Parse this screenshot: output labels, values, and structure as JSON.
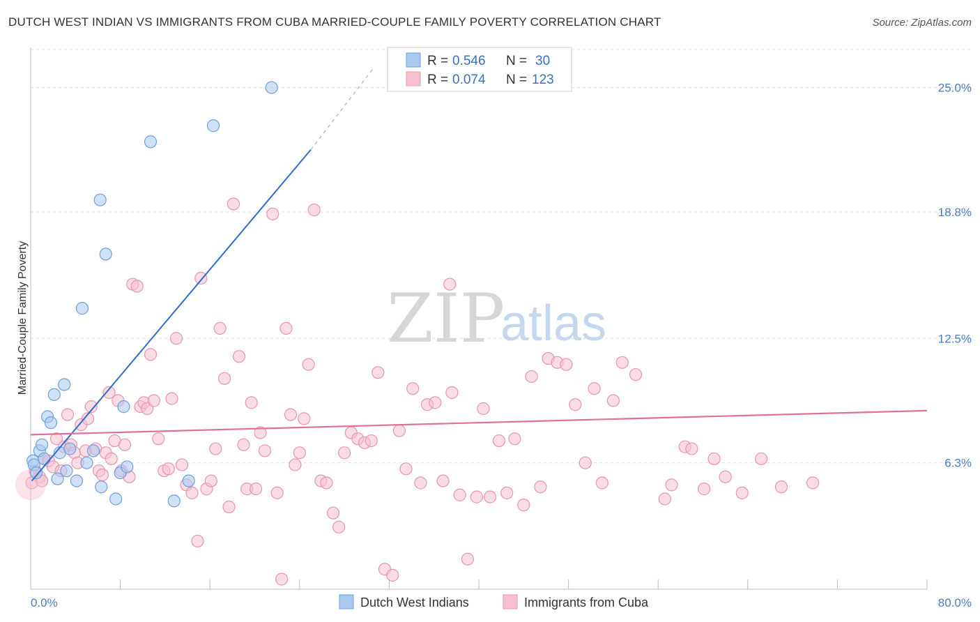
{
  "header": {
    "title": "DUTCH WEST INDIAN VS IMMIGRANTS FROM CUBA MARRIED-COUPLE FAMILY POVERTY CORRELATION CHART",
    "source": "Source: ZipAtlas.com"
  },
  "watermark": {
    "zip": "ZIP",
    "atlas": "atlas"
  },
  "legend": {
    "series1": {
      "r_label": "R = ",
      "r_value": "0.546",
      "n_label": "N = ",
      "n_value": "30"
    },
    "series2": {
      "r_label": "R = ",
      "r_value": "0.074",
      "n_label": "N = ",
      "n_value": "123"
    }
  },
  "chart_data": {
    "type": "scatter",
    "title": "DUTCH WEST INDIAN VS IMMIGRANTS FROM CUBA MARRIED-COUPLE FAMILY POVERTY CORRELATION CHART",
    "xlabel": "",
    "ylabel": "Married-Couple Family Poverty",
    "xlim": [
      0,
      80
    ],
    "ylim": [
      0,
      27
    ],
    "x_tick_labels": [
      {
        "value": 0,
        "label": "0.0%"
      },
      {
        "value": 80,
        "label": "80.0%"
      }
    ],
    "y_tick_labels": [
      {
        "value": 6.3,
        "label": "6.3%"
      },
      {
        "value": 12.5,
        "label": "12.5%"
      },
      {
        "value": 18.8,
        "label": "18.8%"
      },
      {
        "value": 25.0,
        "label": "25.0%"
      }
    ],
    "colors": {
      "blue_fill": "#a9c8f0",
      "blue_stroke": "#6f9fdd",
      "blue_line": "#2a6fcc",
      "pink_fill": "#f6c0d0",
      "pink_stroke": "#e994b0",
      "pink_line": "#e0709a",
      "grid": "#dddddd",
      "axis": "#bbbbbb"
    },
    "series": [
      {
        "name": "Dutch West Indians",
        "color": "#a9c8f0",
        "trend": {
          "x": [
            0.1,
            25.0
          ],
          "y": [
            5.4,
            21.9
          ],
          "dash_to": [
            30.5,
            25.9
          ]
        },
        "points": [
          [
            0.2,
            6.4
          ],
          [
            0.3,
            6.2
          ],
          [
            0.5,
            5.8
          ],
          [
            0.8,
            6.9
          ],
          [
            1.0,
            7.2
          ],
          [
            1.5,
            8.6
          ],
          [
            1.8,
            8.3
          ],
          [
            2.1,
            9.7
          ],
          [
            2.4,
            5.5
          ],
          [
            2.6,
            6.8
          ],
          [
            3.0,
            10.2
          ],
          [
            3.2,
            5.9
          ],
          [
            3.5,
            7.0
          ],
          [
            4.1,
            5.4
          ],
          [
            4.6,
            14.0
          ],
          [
            5.0,
            6.3
          ],
          [
            5.6,
            6.9
          ],
          [
            6.2,
            19.4
          ],
          [
            6.3,
            5.1
          ],
          [
            6.7,
            16.7
          ],
          [
            7.6,
            4.5
          ],
          [
            8.0,
            5.8
          ],
          [
            8.3,
            9.1
          ],
          [
            8.6,
            6.1
          ],
          [
            10.7,
            22.3
          ],
          [
            12.8,
            4.4
          ],
          [
            14.1,
            5.4
          ],
          [
            16.3,
            23.1
          ],
          [
            21.5,
            25.0
          ],
          [
            1.2,
            6.5
          ]
        ]
      },
      {
        "name": "Immigrants from Cuba",
        "color": "#f6c0d0",
        "trend": {
          "x": [
            0,
            80
          ],
          "y": [
            7.7,
            8.9
          ]
        },
        "points": [
          [
            0.1,
            5.3
          ],
          [
            0.4,
            5.9
          ],
          [
            0.8,
            5.6
          ],
          [
            1.0,
            5.4
          ],
          [
            1.2,
            6.5
          ],
          [
            1.6,
            6.4
          ],
          [
            2.0,
            6.1
          ],
          [
            2.3,
            7.5
          ],
          [
            2.7,
            5.9
          ],
          [
            3.0,
            7.1
          ],
          [
            3.3,
            8.7
          ],
          [
            3.6,
            7.2
          ],
          [
            3.9,
            6.8
          ],
          [
            4.2,
            6.3
          ],
          [
            4.5,
            8.2
          ],
          [
            4.9,
            6.9
          ],
          [
            5.1,
            8.5
          ],
          [
            5.4,
            9.1
          ],
          [
            5.8,
            7.0
          ],
          [
            6.1,
            5.9
          ],
          [
            6.4,
            5.7
          ],
          [
            6.7,
            6.8
          ],
          [
            7.0,
            9.8
          ],
          [
            7.2,
            6.5
          ],
          [
            7.5,
            7.4
          ],
          [
            7.8,
            9.4
          ],
          [
            8.1,
            5.9
          ],
          [
            8.4,
            7.2
          ],
          [
            8.8,
            5.6
          ],
          [
            9.1,
            15.2
          ],
          [
            9.5,
            15.1
          ],
          [
            9.8,
            9.1
          ],
          [
            10.1,
            9.3
          ],
          [
            10.4,
            9.0
          ],
          [
            10.7,
            11.7
          ],
          [
            11.0,
            9.4
          ],
          [
            11.4,
            7.5
          ],
          [
            11.9,
            5.9
          ],
          [
            12.3,
            6.0
          ],
          [
            12.6,
            9.5
          ],
          [
            13.0,
            12.5
          ],
          [
            13.5,
            6.2
          ],
          [
            13.9,
            5.2
          ],
          [
            14.4,
            4.8
          ],
          [
            14.9,
            2.4
          ],
          [
            15.2,
            15.5
          ],
          [
            15.7,
            5.0
          ],
          [
            16.1,
            5.4
          ],
          [
            16.5,
            7.0
          ],
          [
            16.9,
            13.0
          ],
          [
            17.3,
            10.5
          ],
          [
            17.7,
            4.1
          ],
          [
            18.1,
            19.2
          ],
          [
            18.6,
            11.6
          ],
          [
            19.0,
            7.2
          ],
          [
            19.3,
            5.0
          ],
          [
            19.7,
            9.3
          ],
          [
            20.1,
            5.0
          ],
          [
            20.5,
            7.8
          ],
          [
            20.9,
            6.9
          ],
          [
            21.6,
            18.7
          ],
          [
            22.0,
            4.8
          ],
          [
            22.4,
            0.5
          ],
          [
            22.8,
            13.0
          ],
          [
            23.2,
            8.7
          ],
          [
            23.6,
            6.2
          ],
          [
            24.0,
            6.8
          ],
          [
            24.4,
            8.5
          ],
          [
            24.8,
            11.2
          ],
          [
            25.3,
            18.9
          ],
          [
            25.9,
            5.4
          ],
          [
            26.4,
            5.3
          ],
          [
            27.0,
            3.8
          ],
          [
            27.5,
            3.1
          ],
          [
            28.0,
            6.8
          ],
          [
            28.6,
            7.8
          ],
          [
            29.2,
            7.5
          ],
          [
            29.8,
            7.3
          ],
          [
            30.4,
            7.4
          ],
          [
            31.0,
            10.8
          ],
          [
            31.6,
            1.0
          ],
          [
            32.3,
            0.7
          ],
          [
            32.9,
            7.9
          ],
          [
            33.5,
            6.0
          ],
          [
            34.1,
            10.0
          ],
          [
            34.8,
            5.3
          ],
          [
            35.4,
            9.2
          ],
          [
            36.1,
            9.3
          ],
          [
            36.8,
            5.4
          ],
          [
            37.4,
            15.2
          ],
          [
            37.6,
            9.8
          ],
          [
            38.3,
            4.7
          ],
          [
            39.0,
            1.5
          ],
          [
            39.8,
            4.6
          ],
          [
            40.4,
            9.0
          ],
          [
            41.0,
            4.6
          ],
          [
            41.8,
            7.4
          ],
          [
            42.5,
            4.8
          ],
          [
            43.2,
            7.5
          ],
          [
            44.0,
            4.2
          ],
          [
            44.7,
            10.6
          ],
          [
            45.5,
            5.1
          ],
          [
            46.2,
            11.5
          ],
          [
            47.0,
            11.3
          ],
          [
            47.8,
            11.2
          ],
          [
            48.6,
            9.2
          ],
          [
            49.5,
            6.3
          ],
          [
            50.3,
            10.0
          ],
          [
            51.0,
            5.3
          ],
          [
            52.0,
            9.4
          ],
          [
            52.8,
            11.3
          ],
          [
            54.0,
            10.7
          ],
          [
            56.6,
            4.5
          ],
          [
            57.2,
            5.2
          ],
          [
            58.4,
            7.1
          ],
          [
            59.0,
            7.0
          ],
          [
            60.1,
            5.0
          ],
          [
            61.0,
            6.5
          ],
          [
            62.0,
            5.6
          ],
          [
            63.5,
            4.8
          ],
          [
            65.2,
            6.5
          ],
          [
            67.0,
            5.1
          ],
          [
            69.8,
            5.3
          ]
        ]
      }
    ],
    "legend_position": "top-center",
    "grid": true
  }
}
